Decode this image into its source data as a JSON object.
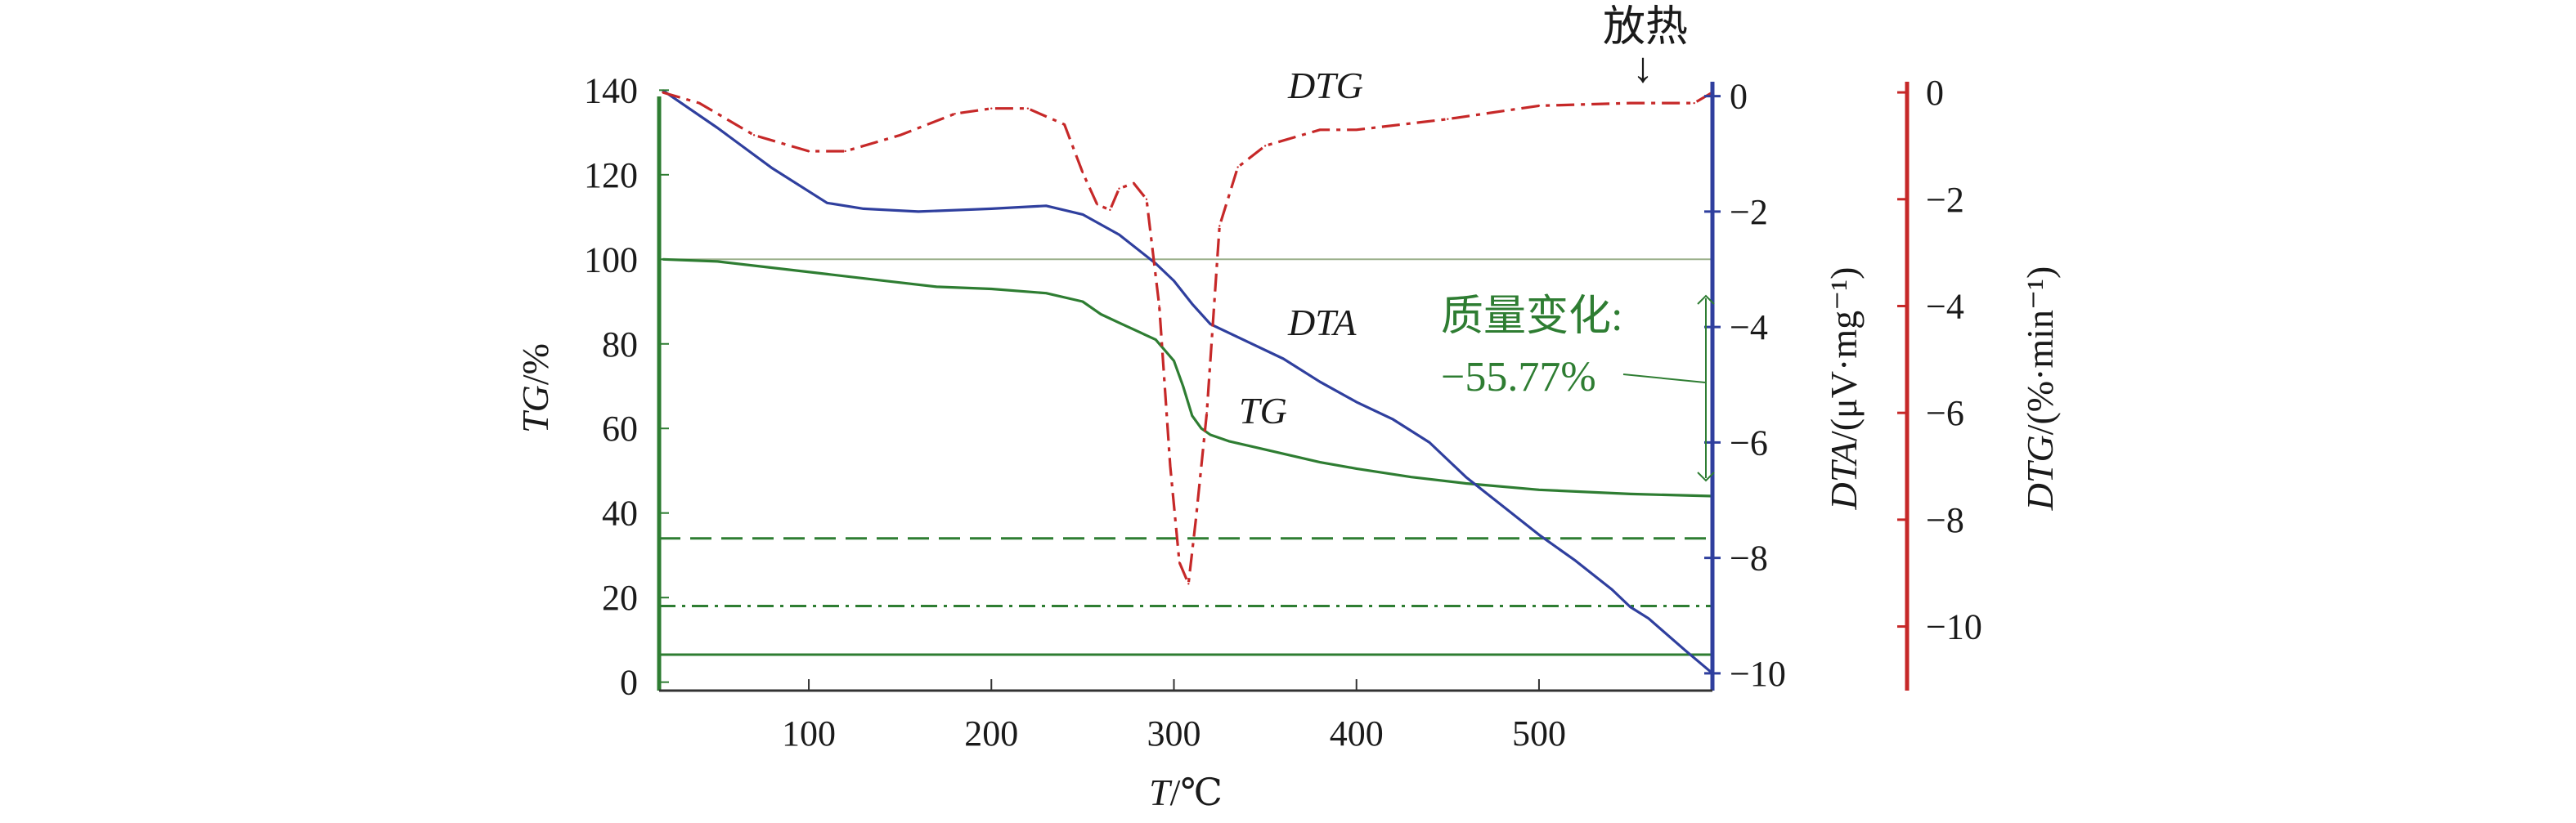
{
  "colors": {
    "tg": "#2e7d32",
    "dta": "#2f3f9e",
    "dtg": "#c62828",
    "ref_line": "#9cb08c",
    "text": "#1a1a1a",
    "frame_left": "#2e7d32",
    "frame_right": "#2f3f9e",
    "dtg_axis": "#c62828"
  },
  "chart_data": {
    "type": "line",
    "xlabel": "T/℃",
    "xlim": [
      18,
      595
    ],
    "xticks": [
      "100",
      "200",
      "300",
      "400",
      "500"
    ],
    "axes": {
      "tg": {
        "label": "TG/%",
        "ylim": [
          -2,
          142
        ],
        "ticks": [
          "0",
          "20",
          "40",
          "60",
          "80",
          "100",
          "120",
          "140"
        ]
      },
      "dta": {
        "label": "DTA/(μV·mg⁻¹)",
        "ylim": [
          -10.3,
          0.25
        ],
        "ticks": [
          "0",
          "−2",
          "−4",
          "−6",
          "−8",
          "−10"
        ]
      },
      "dtg": {
        "label": "DTG/(%·min⁻¹)",
        "ylim": [
          -11.2,
          0.2
        ],
        "ticks": [
          "0",
          "−2",
          "−4",
          "−6",
          "−8",
          "−10"
        ]
      }
    },
    "series": [
      {
        "name": "TG",
        "axis": "tg",
        "x": [
          20,
          50,
          80,
          110,
          140,
          170,
          200,
          230,
          250,
          260,
          270,
          280,
          290,
          300,
          305,
          310,
          315,
          320,
          330,
          350,
          380,
          400,
          430,
          460,
          500,
          550,
          595
        ],
        "y": [
          100,
          99.5,
          98,
          96.5,
          95,
          93.5,
          93,
          92,
          90,
          87,
          85,
          83,
          81,
          76,
          70,
          63,
          60,
          58.5,
          57,
          55,
          52,
          50.5,
          48.5,
          47,
          45.5,
          44.5,
          44
        ]
      },
      {
        "name": "DTA",
        "axis": "dta",
        "x": [
          20,
          50,
          80,
          110,
          130,
          160,
          200,
          230,
          250,
          270,
          290,
          300,
          310,
          320,
          340,
          360,
          380,
          400,
          420,
          440,
          460,
          480,
          500,
          520,
          540,
          550,
          560,
          580,
          595
        ],
        "y": [
          0.1,
          -0.55,
          -1.25,
          -1.85,
          -1.95,
          -2.0,
          -1.95,
          -1.9,
          -2.05,
          -2.4,
          -2.9,
          -3.2,
          -3.6,
          -3.95,
          -4.25,
          -4.55,
          -4.95,
          -5.3,
          -5.6,
          -6.0,
          -6.6,
          -7.1,
          -7.6,
          -8.05,
          -8.55,
          -8.85,
          -9.05,
          -9.6,
          -10.0
        ]
      },
      {
        "name": "DTG",
        "axis": "dtg",
        "x": [
          20,
          40,
          70,
          100,
          120,
          150,
          180,
          200,
          220,
          240,
          250,
          258,
          265,
          270,
          278,
          285,
          292,
          298,
          303,
          308,
          312,
          318,
          325,
          335,
          350,
          380,
          400,
          450,
          500,
          550,
          585,
          595
        ],
        "y": [
          0,
          -0.2,
          -0.8,
          -1.1,
          -1.1,
          -0.8,
          -0.4,
          -0.3,
          -0.3,
          -0.6,
          -1.5,
          -2.1,
          -2.2,
          -1.8,
          -1.7,
          -2.0,
          -4.0,
          -7.0,
          -8.8,
          -9.2,
          -8.0,
          -6.0,
          -2.5,
          -1.4,
          -1.0,
          -0.7,
          -0.7,
          -0.5,
          -0.25,
          -0.2,
          -0.2,
          0
        ]
      }
    ],
    "reference_lines": [
      {
        "axis": "tg",
        "y": 100,
        "style": "solid-thin"
      },
      {
        "axis": "tg",
        "y": 34,
        "style": "dashed"
      },
      {
        "axis": "tg",
        "y": 18,
        "style": "dash-dot"
      },
      {
        "axis": "tg",
        "y": 6.5,
        "style": "solid"
      }
    ],
    "annotations": {
      "dtg_label": "DTG",
      "dta_label": "DTA",
      "tg_label": "TG",
      "exotherm": "放热",
      "exotherm_arrow": "↓",
      "mass_change_title": "质量变化:",
      "mass_change_value": "−55.77%"
    }
  }
}
